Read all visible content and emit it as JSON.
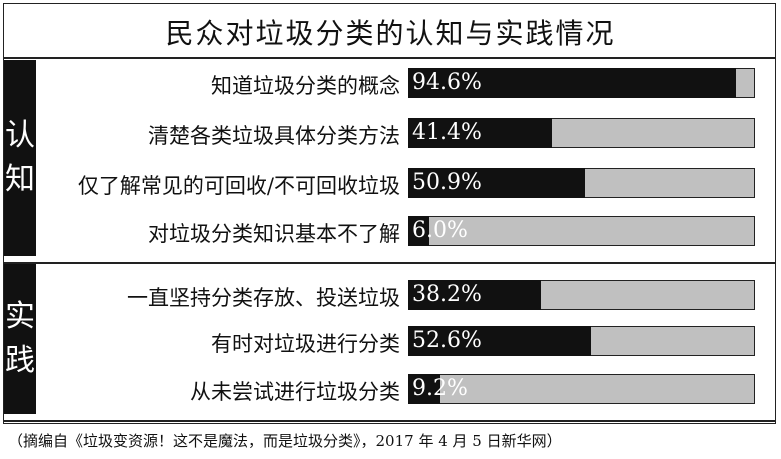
{
  "chart_data": {
    "type": "bar",
    "orientation": "horizontal",
    "title": "民众对垃圾分类的认知与实践情况",
    "xlim": [
      0,
      100
    ],
    "groups": [
      {
        "name": "认知",
        "chars": [
          "认",
          "知"
        ],
        "items": [
          {
            "label": "知道垃圾分类的概念",
            "value": 94.6,
            "text": "94.6%"
          },
          {
            "label": "清楚各类垃圾具体分类方法",
            "value": 41.4,
            "text": "41.4%"
          },
          {
            "label": "仅了解常见的可回收/不可回收垃圾",
            "value": 50.9,
            "text": "50.9%"
          },
          {
            "label": "对垃圾分类知识基本不了解",
            "value": 6.0,
            "text": "6.0%"
          }
        ]
      },
      {
        "name": "实践",
        "chars": [
          "实",
          "践"
        ],
        "items": [
          {
            "label": "一直坚持分类存放、投送垃圾",
            "value": 38.2,
            "text": "38.2%"
          },
          {
            "label": "有时对垃圾进行分类",
            "value": 52.6,
            "text": "52.6%"
          },
          {
            "label": "从未尝试进行垃圾分类",
            "value": 9.2,
            "text": "9.2%"
          }
        ]
      }
    ],
    "colors": {
      "fill": "#111111",
      "track": "#c0c0c0"
    }
  },
  "source": "（摘编自《垃圾变资源！这不是魔法，而是垃圾分类》，2017 年 4 月 5 日新华网）"
}
